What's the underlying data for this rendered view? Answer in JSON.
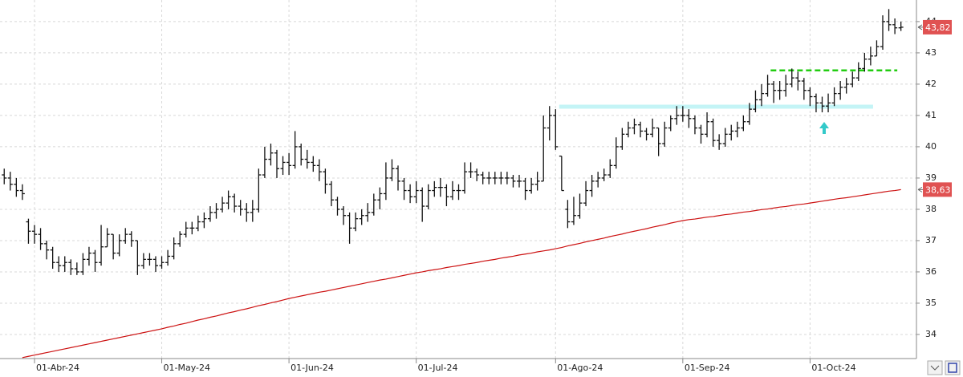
{
  "chart_data": {
    "type": "ohlc",
    "categories": [
      null,
      null,
      null,
      null,
      null,
      "01-Abr-24",
      null,
      null,
      null,
      null,
      null,
      null,
      null,
      null,
      null,
      null,
      null,
      null,
      null,
      null,
      null,
      null,
      null,
      null,
      null,
      null,
      "01-May-24",
      null,
      null,
      null,
      null,
      null,
      null,
      null,
      null,
      null,
      null,
      null,
      null,
      null,
      null,
      null,
      null,
      null,
      null,
      null,
      null,
      "01-Jun-24",
      null,
      null,
      null,
      null,
      null,
      null,
      null,
      null,
      null,
      null,
      null,
      null,
      null,
      null,
      null,
      null,
      null,
      null,
      null,
      null,
      "01-Jul-24",
      null,
      null,
      null,
      null,
      null,
      null,
      null,
      null,
      null,
      null,
      null,
      null,
      null,
      null,
      null,
      null,
      null,
      null,
      null,
      null,
      null,
      null,
      "01-Ago-24",
      null,
      null,
      null,
      null,
      null,
      null,
      null,
      null,
      null,
      null,
      null,
      null,
      null,
      null,
      null,
      null,
      null,
      null,
      null,
      null,
      "01-Sep-24",
      null,
      null,
      null,
      null,
      null,
      null,
      null,
      null,
      null,
      null,
      null,
      null,
      null,
      null,
      null,
      null,
      null,
      null,
      null,
      null,
      "01-Oct-24",
      null,
      null,
      null,
      null,
      null,
      null,
      null,
      null,
      null,
      null,
      null,
      null,
      null,
      null,
      null
    ],
    "open": [
      39.1,
      39.0,
      38.8,
      38.6,
      37.6,
      37.3,
      37.2,
      36.9,
      36.7,
      36.3,
      36.2,
      36.3,
      36.1,
      36.0,
      36.4,
      36.6,
      36.3,
      36.8,
      37.2,
      36.6,
      37.0,
      37.2,
      37.0,
      36.2,
      36.4,
      36.4,
      36.2,
      36.3,
      36.5,
      36.9,
      37.2,
      37.4,
      37.4,
      37.6,
      37.7,
      37.9,
      38.0,
      38.2,
      38.4,
      38.1,
      38.0,
      37.9,
      38.0,
      39.1,
      39.6,
      39.8,
      39.3,
      39.5,
      39.4,
      40.0,
      39.6,
      39.5,
      39.4,
      39.2,
      38.8,
      38.3,
      38.0,
      37.8,
      37.4,
      37.7,
      37.8,
      37.9,
      38.3,
      38.5,
      39.0,
      39.3,
      38.9,
      38.6,
      38.4,
      38.6,
      38.1,
      38.6,
      38.7,
      38.7,
      38.4,
      38.6,
      38.6,
      39.2,
      39.2,
      39.1,
      39.0,
      39.0,
      39.0,
      39.0,
      39.0,
      38.9,
      38.9,
      38.6,
      38.8,
      38.9,
      40.6,
      41.0,
      39.7,
      38.0,
      37.6,
      37.8,
      38.2,
      38.6,
      38.9,
      39.0,
      39.1,
      39.4,
      40.0,
      40.4,
      40.6,
      40.7,
      40.5,
      40.4,
      40.6,
      40.1,
      40.6,
      40.9,
      41.0,
      41.0,
      40.9,
      40.6,
      40.4,
      40.8,
      40.2,
      40.1,
      40.4,
      40.5,
      40.6,
      40.8,
      41.2,
      41.5,
      41.7,
      42.0,
      41.8,
      41.8,
      42.0,
      42.2,
      42.1,
      41.8,
      41.6,
      41.4,
      41.3,
      41.4,
      41.7,
      41.9,
      42.0,
      42.2,
      42.5,
      42.8,
      42.9,
      43.2,
      44.0,
      43.9,
      43.8
    ],
    "high": [
      39.3,
      39.2,
      39.0,
      38.8,
      37.7,
      37.5,
      37.4,
      37.0,
      36.8,
      36.5,
      36.5,
      36.4,
      36.3,
      36.6,
      36.8,
      36.7,
      37.5,
      37.4,
      37.2,
      37.2,
      37.4,
      37.3,
      37.0,
      36.6,
      36.6,
      36.5,
      36.5,
      36.7,
      37.1,
      37.3,
      37.6,
      37.6,
      37.8,
      37.9,
      38.1,
      38.2,
      38.4,
      38.6,
      38.5,
      38.3,
      38.2,
      38.3,
      39.3,
      40.0,
      40.1,
      39.9,
      39.7,
      39.8,
      40.5,
      40.1,
      39.9,
      39.7,
      39.6,
      39.3,
      38.9,
      38.4,
      38.1,
      37.9,
      37.9,
      38.0,
      38.2,
      38.5,
      38.7,
      39.5,
      39.6,
      39.4,
      39.0,
      38.8,
      38.9,
      38.7,
      38.8,
      38.9,
      39.0,
      38.8,
      38.9,
      38.8,
      39.5,
      39.5,
      39.3,
      39.2,
      39.2,
      39.2,
      39.2,
      39.2,
      39.1,
      39.1,
      39.0,
      39.0,
      39.2,
      41.0,
      41.3,
      41.2,
      39.7,
      38.3,
      38.4,
      38.5,
      38.9,
      39.1,
      39.2,
      39.3,
      39.6,
      40.3,
      40.6,
      40.8,
      40.9,
      40.8,
      40.6,
      40.9,
      40.6,
      40.8,
      41.0,
      41.3,
      41.3,
      41.2,
      41.0,
      40.7,
      41.1,
      40.9,
      40.4,
      40.6,
      40.7,
      40.8,
      41.0,
      41.4,
      41.8,
      42.0,
      42.3,
      42.1,
      42.1,
      42.3,
      42.5,
      42.4,
      42.2,
      41.9,
      41.7,
      41.6,
      41.7,
      41.9,
      42.1,
      42.2,
      42.4,
      42.7,
      43.0,
      43.2,
      43.4,
      44.2,
      44.4,
      44.1,
      44.0
    ],
    "low": [
      38.8,
      38.6,
      38.4,
      38.3,
      36.9,
      36.9,
      36.7,
      36.4,
      36.1,
      36.0,
      36.0,
      35.9,
      35.9,
      35.9,
      36.2,
      36.0,
      36.2,
      36.8,
      36.4,
      36.5,
      36.9,
      36.8,
      35.9,
      36.1,
      36.2,
      36.0,
      36.1,
      36.2,
      36.4,
      36.8,
      37.1,
      37.2,
      37.3,
      37.4,
      37.6,
      37.7,
      37.9,
      38.0,
      37.9,
      37.8,
      37.6,
      37.6,
      37.9,
      39.0,
      39.4,
      39.0,
      39.1,
      39.1,
      39.3,
      39.4,
      39.3,
      39.2,
      38.9,
      38.5,
      38.1,
      37.8,
      37.5,
      36.9,
      37.3,
      37.5,
      37.6,
      37.8,
      38.0,
      38.3,
      38.9,
      38.6,
      38.3,
      38.2,
      38.2,
      37.6,
      38.0,
      38.4,
      38.4,
      38.1,
      38.3,
      38.3,
      38.5,
      39.0,
      38.9,
      38.8,
      38.8,
      38.8,
      38.8,
      38.8,
      38.7,
      38.7,
      38.3,
      38.5,
      38.6,
      38.9,
      40.2,
      39.9,
      38.6,
      37.4,
      37.5,
      37.7,
      38.1,
      38.4,
      38.7,
      38.9,
      39.0,
      39.3,
      39.9,
      40.3,
      40.4,
      40.3,
      40.2,
      40.3,
      39.7,
      40.0,
      40.5,
      40.7,
      40.8,
      40.6,
      40.4,
      40.1,
      40.3,
      40.0,
      39.9,
      40.0,
      40.2,
      40.3,
      40.5,
      40.7,
      41.1,
      41.3,
      41.6,
      41.4,
      41.5,
      41.6,
      41.9,
      41.8,
      41.5,
      41.3,
      41.1,
      41.1,
      41.1,
      41.3,
      41.5,
      41.7,
      41.9,
      42.1,
      42.4,
      42.6,
      42.9,
      43.1,
      43.7,
      43.6,
      43.7
    ],
    "close": [
      39.0,
      38.8,
      38.6,
      38.5,
      37.3,
      37.2,
      36.9,
      36.7,
      36.3,
      36.2,
      36.3,
      36.1,
      36.0,
      36.4,
      36.6,
      36.3,
      36.8,
      37.2,
      36.6,
      37.0,
      37.2,
      37.0,
      36.2,
      36.4,
      36.4,
      36.2,
      36.3,
      36.5,
      36.9,
      37.2,
      37.4,
      37.4,
      37.6,
      37.7,
      37.9,
      38.0,
      38.2,
      38.4,
      38.1,
      38.0,
      37.9,
      38.0,
      39.1,
      39.6,
      39.8,
      39.3,
      39.5,
      39.4,
      40.0,
      39.6,
      39.5,
      39.4,
      39.2,
      38.8,
      38.3,
      38.0,
      37.8,
      37.4,
      37.7,
      37.8,
      37.9,
      38.3,
      38.5,
      39.0,
      39.3,
      38.9,
      38.6,
      38.4,
      38.6,
      38.1,
      38.6,
      38.7,
      38.7,
      38.4,
      38.6,
      38.6,
      39.2,
      39.2,
      39.1,
      39.0,
      39.0,
      39.0,
      39.0,
      39.0,
      38.9,
      38.9,
      38.6,
      38.8,
      38.9,
      40.6,
      41.0,
      40.0,
      38.6,
      37.6,
      37.8,
      38.2,
      38.6,
      38.9,
      39.0,
      39.1,
      39.4,
      40.0,
      40.4,
      40.6,
      40.7,
      40.5,
      40.4,
      40.6,
      40.1,
      40.6,
      40.9,
      41.0,
      41.0,
      40.9,
      40.6,
      40.4,
      40.8,
      40.2,
      40.1,
      40.4,
      40.5,
      40.6,
      40.8,
      41.2,
      41.5,
      41.7,
      42.0,
      41.8,
      41.8,
      42.0,
      42.2,
      42.1,
      41.8,
      41.6,
      41.4,
      41.3,
      41.4,
      41.7,
      41.9,
      42.0,
      42.2,
      42.5,
      42.8,
      42.9,
      43.2,
      44.0,
      43.9,
      43.8,
      43.82
    ],
    "bar_color": "#111111",
    "moving_average": {
      "color": "#cc1111",
      "values": [
        null,
        null,
        null,
        33.26,
        33.3,
        33.34,
        33.38,
        33.42,
        33.46,
        33.5,
        33.54,
        33.58,
        33.62,
        33.66,
        33.7,
        33.74,
        33.78,
        33.82,
        33.86,
        33.9,
        33.94,
        33.98,
        34.02,
        34.06,
        34.1,
        34.14,
        34.18,
        34.23,
        34.27,
        34.32,
        34.36,
        34.41,
        34.46,
        34.5,
        34.55,
        34.59,
        34.64,
        34.69,
        34.73,
        34.78,
        34.82,
        34.87,
        34.92,
        34.96,
        35.01,
        35.05,
        35.1,
        35.15,
        35.19,
        35.23,
        35.27,
        35.31,
        35.35,
        35.38,
        35.42,
        35.46,
        35.5,
        35.54,
        35.58,
        35.62,
        35.66,
        35.7,
        35.74,
        35.77,
        35.81,
        35.85,
        35.89,
        35.93,
        35.97,
        36.0,
        36.04,
        36.07,
        36.1,
        36.14,
        36.17,
        36.2,
        36.24,
        36.27,
        36.3,
        36.34,
        36.37,
        36.4,
        36.44,
        36.47,
        36.5,
        36.54,
        36.57,
        36.6,
        36.64,
        36.67,
        36.7,
        36.74,
        36.78,
        36.83,
        36.87,
        36.91,
        36.96,
        37.0,
        37.04,
        37.08,
        37.13,
        37.17,
        37.21,
        37.26,
        37.3,
        37.34,
        37.38,
        37.43,
        37.47,
        37.51,
        37.56,
        37.6,
        37.64,
        37.67,
        37.69,
        37.72,
        37.75,
        37.77,
        37.8,
        37.83,
        37.85,
        37.88,
        37.91,
        37.93,
        37.96,
        37.99,
        38.01,
        38.04,
        38.07,
        38.09,
        38.12,
        38.15,
        38.17,
        38.2,
        38.23,
        38.26,
        38.29,
        38.32,
        38.35,
        38.37,
        38.4,
        38.43,
        38.46,
        38.49,
        38.52,
        38.55,
        38.58,
        38.6,
        38.63
      ]
    },
    "support_level": {
      "value": 41.28,
      "color": "#c4f4f6"
    },
    "resistance_level": {
      "value": 42.44,
      "color": "#22cc11"
    },
    "price_tags": [
      {
        "value": 43.82,
        "label": "43,82",
        "color": "#e05252"
      },
      {
        "value": 38.63,
        "label": "38,63",
        "color": "#e05252"
      }
    ],
    "ylim": [
      33.23,
      44.69
    ],
    "yticks": [
      34,
      35,
      36,
      37,
      38,
      39,
      40,
      41,
      42,
      43,
      44
    ],
    "grid": true
  }
}
